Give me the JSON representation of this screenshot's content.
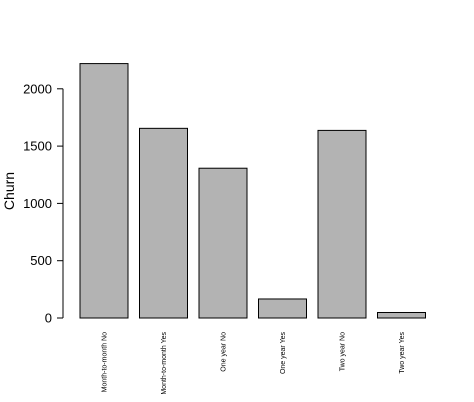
{
  "chart_data": {
    "type": "bar",
    "title": "",
    "xlabel": "",
    "ylabel": "Churn",
    "categories": [
      "Month-to-month No",
      "Month-to-month Yes",
      "One year No",
      "One year Yes",
      "Two year No",
      "Two year Yes"
    ],
    "values": [
      2220,
      1655,
      1307,
      166,
      1637,
      48
    ],
    "yticks": [
      0,
      500,
      1000,
      1500,
      2000
    ],
    "ylim": [
      0,
      2220
    ],
    "bar_color": "#b3b3b3",
    "edge_color": "#000000",
    "grid": false
  }
}
